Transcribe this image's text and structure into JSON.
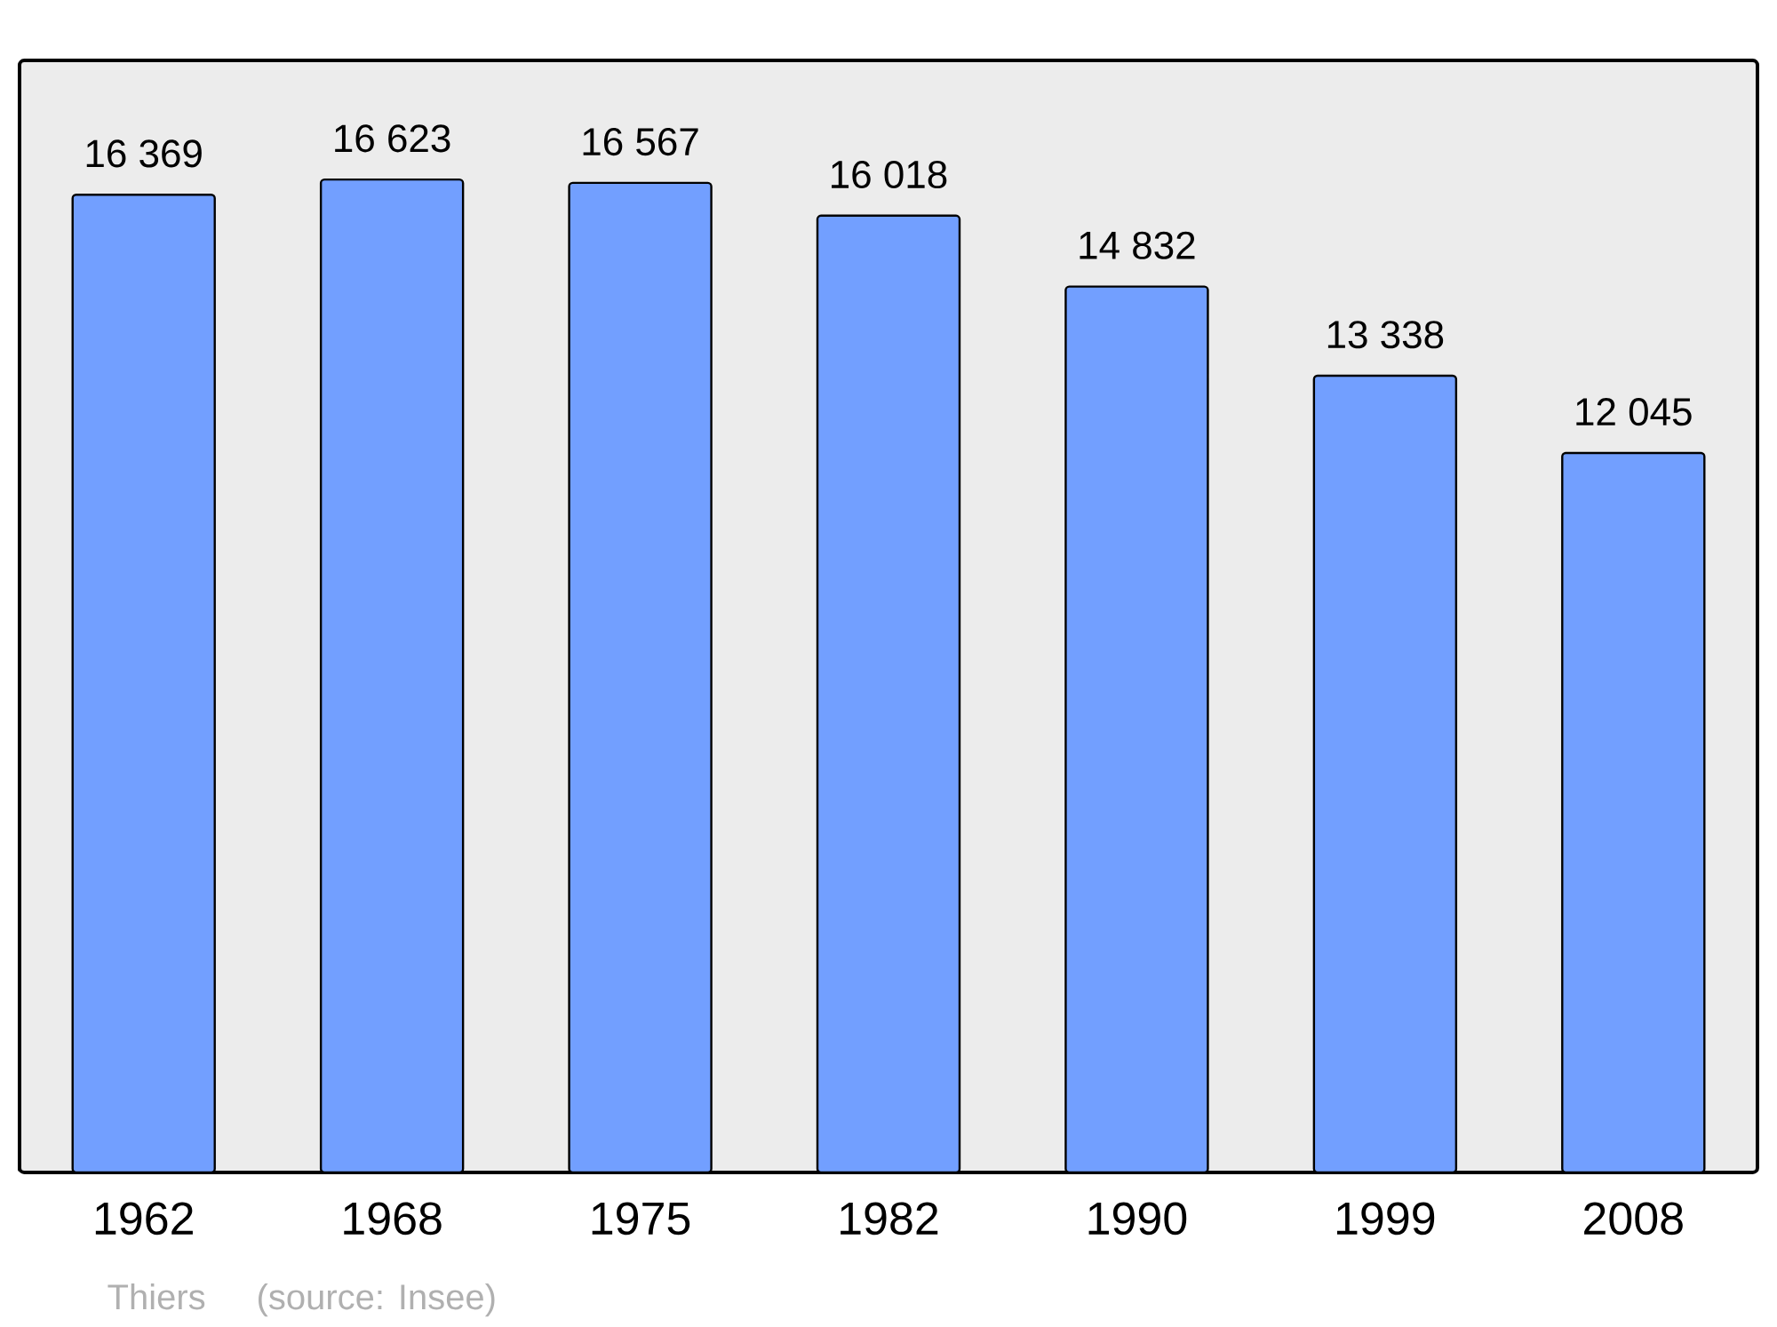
{
  "chart_data": {
    "type": "bar",
    "categories": [
      "1962",
      "1968",
      "1975",
      "1982",
      "1990",
      "1999",
      "2008"
    ],
    "values": [
      16369,
      16623,
      16567,
      16018,
      14832,
      13338,
      12045
    ],
    "value_labels": [
      "16 369",
      "16 623",
      "16 567",
      "16 018",
      "14 832",
      "13 338",
      "12 045"
    ],
    "color": "#729fff",
    "annotations": [
      "Thiers",
      "(source: Insee)"
    ]
  }
}
